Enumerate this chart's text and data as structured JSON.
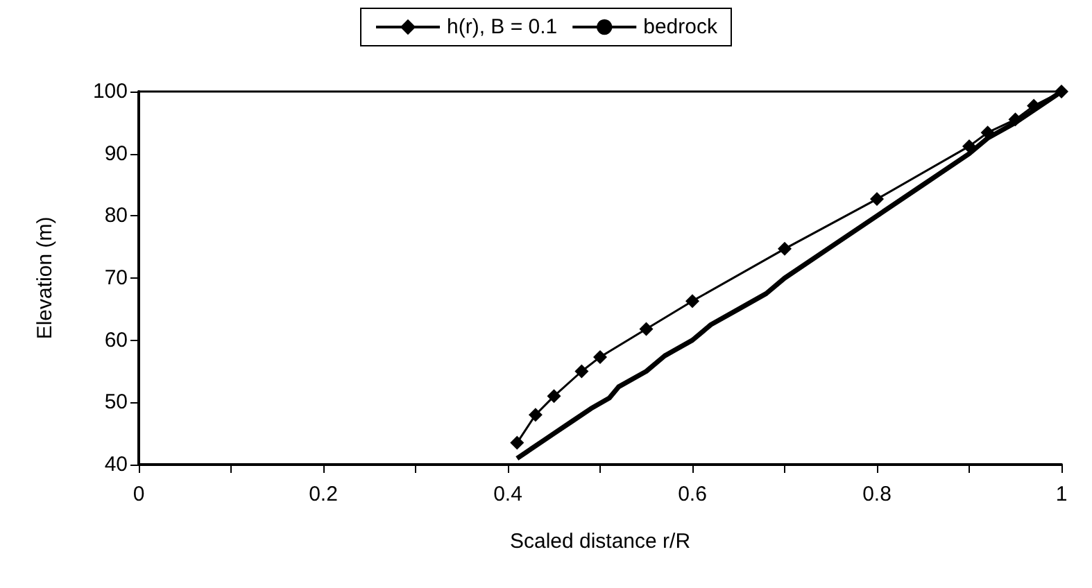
{
  "chart_data": {
    "type": "line",
    "xlabel": "Scaled distance r/R",
    "ylabel": "Elevation (m)",
    "xlim": [
      0,
      1
    ],
    "xticks": [
      0,
      {
        "value": 0.1,
        "label": null
      },
      0.2,
      {
        "value": 0.3,
        "label": null
      },
      0.4,
      {
        "value": 0.5,
        "label": null
      },
      0.6,
      {
        "value": 0.7,
        "label": null
      },
      0.8,
      {
        "value": 0.9,
        "label": null
      },
      1
    ],
    "ylim": [
      40,
      100
    ],
    "yticks": [
      40,
      50,
      60,
      70,
      80,
      90,
      100
    ],
    "grid": false,
    "legend": "top",
    "series": [
      {
        "name": "h(r), B = 0.1",
        "color": "#000000",
        "marker": "diamond",
        "x": [
          0.41,
          0.43,
          0.45,
          0.48,
          0.5,
          0.55,
          0.6,
          0.7,
          0.8,
          0.9,
          0.92,
          0.95,
          0.97,
          1.0
        ],
        "values": [
          43.5,
          48.0,
          51.0,
          55.0,
          57.3,
          61.8,
          66.3,
          74.7,
          82.7,
          91.2,
          93.4,
          95.5,
          97.7,
          100
        ]
      },
      {
        "name": "bedrock",
        "color": "#000000",
        "marker": "none",
        "x": [
          0.41,
          0.44,
          0.45,
          0.47,
          0.49,
          0.51,
          0.52,
          0.55,
          0.57,
          0.6,
          0.62,
          0.65,
          0.68,
          0.7,
          0.75,
          0.8,
          0.85,
          0.9,
          0.92,
          0.95,
          1.0
        ],
        "values": [
          41,
          44,
          45,
          47,
          49,
          50.7,
          52.5,
          55,
          57.5,
          60,
          62.5,
          65,
          67.5,
          70,
          75,
          80,
          85,
          90,
          92.5,
          95,
          100
        ]
      }
    ]
  }
}
